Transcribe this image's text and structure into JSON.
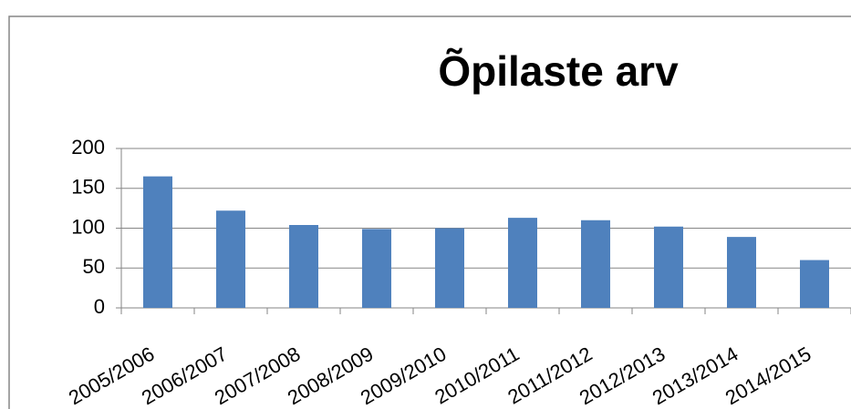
{
  "chart_data": {
    "type": "bar",
    "title": "Õpilaste arv",
    "categories": [
      "2005/2006",
      "2006/2007",
      "2007/2008",
      "2008/2009",
      "2009/2010",
      "2010/2011",
      "2011/2012",
      "2012/2013",
      "2013/2014",
      "2014/2015"
    ],
    "values": [
      165,
      122,
      104,
      99,
      100,
      113,
      110,
      102,
      89,
      60
    ],
    "color": "#4f81bd",
    "ylim": [
      0,
      200
    ],
    "yticks": [
      0,
      50,
      100,
      150,
      200
    ],
    "grid": true
  }
}
